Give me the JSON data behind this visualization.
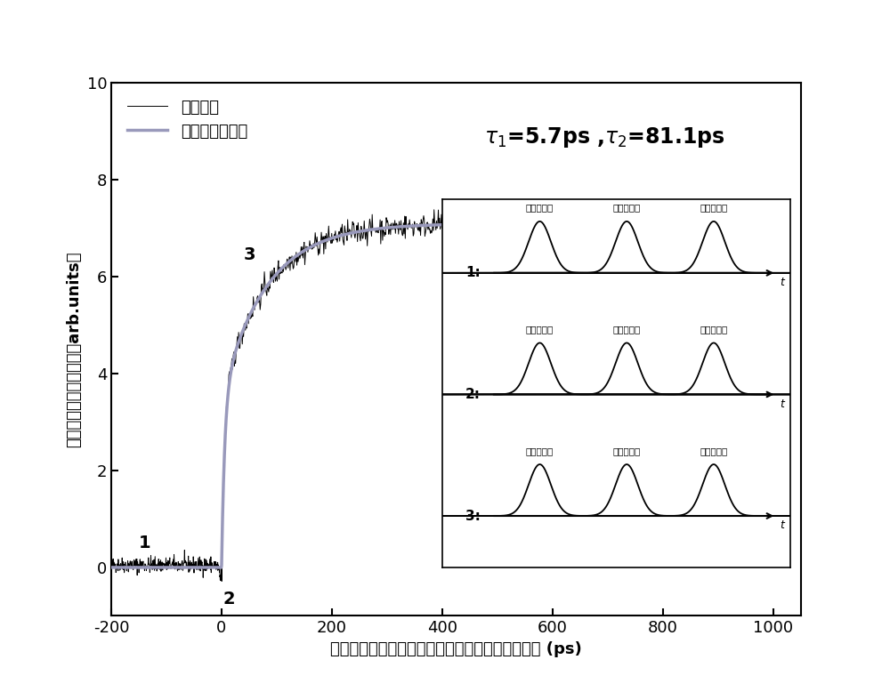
{
  "xlim": [
    -200,
    1050
  ],
  "ylim": [
    -1,
    10
  ],
  "xlabel": "第一泵浦光脉冲与第二泵浦光脉冲之间的延迟时间 (ps)",
  "ylabel": "驻留电子自旋信号幅度（arb.units）",
  "yticks": [
    0,
    2,
    4,
    6,
    8,
    10
  ],
  "xticks": [
    -200,
    0,
    200,
    400,
    600,
    800,
    1000
  ],
  "tau1": "5.7",
  "tau2": "81.1",
  "legend_exp": "实验数据",
  "legend_fit": "双指数函数拟合",
  "label1": "1",
  "label2": "2",
  "label3": "3",
  "inset_labels_row1": [
    "第一泵浦光",
    "第二泵浦光",
    "探测光脉冲"
  ],
  "inset_labels_row2": [
    "第二泵浦光",
    "第一泵浦光",
    "探测光脉冲"
  ],
  "inset_labels_row3": [
    "第二泵浦光",
    "探测光脉冲",
    "第一泵浦光"
  ],
  "fit_A1": 3.5,
  "fit_A2": 3.55,
  "fit_tau1": 5.7,
  "fit_tau2": 81.1,
  "fit_baseline": 7.1,
  "exp_color": "#000000",
  "fit_color": "#9999bb",
  "background_color": "#ffffff"
}
